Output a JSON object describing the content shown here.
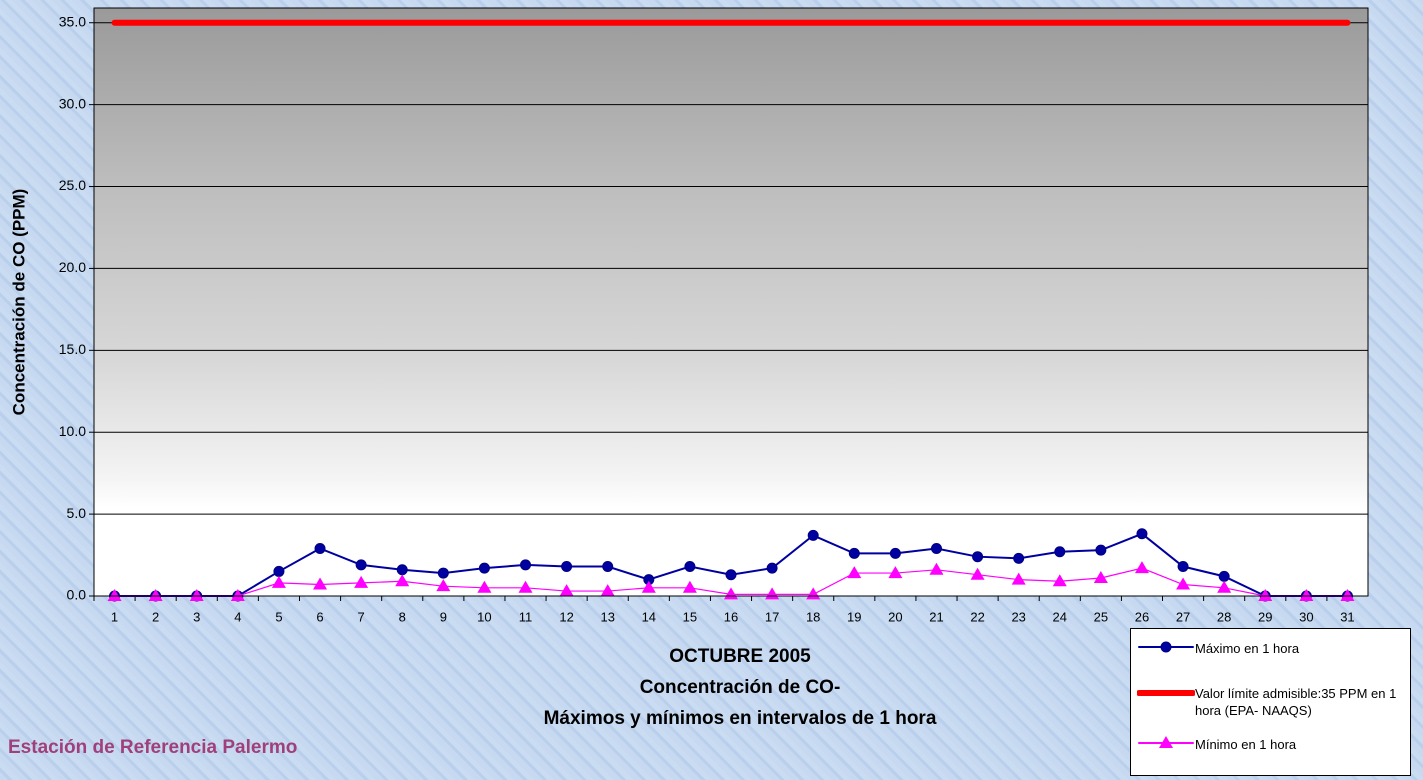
{
  "chart_data": {
    "type": "line",
    "title": "Concentración de CO-",
    "subtitle": "Máximos y mínimos en intervalos de 1 hora",
    "x_label": "OCTUBRE 2005",
    "y_label": "Concentración de CO (PPM)",
    "footer": "Estación de Referencia Palermo",
    "categories": [
      "1",
      "2",
      "3",
      "4",
      "5",
      "6",
      "7",
      "8",
      "9",
      "10",
      "11",
      "12",
      "13",
      "14",
      "15",
      "16",
      "17",
      "18",
      "19",
      "20",
      "21",
      "22",
      "23",
      "24",
      "25",
      "26",
      "27",
      "28",
      "29",
      "30",
      "31"
    ],
    "series": [
      {
        "name": "Máximo en 1 hora",
        "color": "#0000a0",
        "marker": "circle",
        "values": [
          0,
          0,
          0,
          0,
          1.5,
          2.9,
          1.9,
          1.6,
          1.4,
          1.7,
          1.9,
          1.8,
          1.8,
          1.0,
          1.8,
          1.3,
          1.7,
          3.7,
          2.6,
          2.6,
          2.9,
          2.4,
          2.3,
          2.7,
          2.8,
          3.8,
          1.8,
          1.2,
          0,
          0,
          0
        ]
      },
      {
        "name": "Valor límite admisible:35 PPM en 1 hora (EPA- NAAQS)",
        "color": "#ff0000",
        "marker": "none",
        "values": [
          35,
          35,
          35,
          35,
          35,
          35,
          35,
          35,
          35,
          35,
          35,
          35,
          35,
          35,
          35,
          35,
          35,
          35,
          35,
          35,
          35,
          35,
          35,
          35,
          35,
          35,
          35,
          35,
          35,
          35,
          35
        ]
      },
      {
        "name": "Mínimo en 1 hora",
        "color": "#ff00ff",
        "marker": "triangle",
        "values": [
          0,
          0,
          0,
          0,
          0.8,
          0.7,
          0.8,
          0.9,
          0.6,
          0.5,
          0.5,
          0.3,
          0.3,
          0.5,
          0.5,
          0.1,
          0.1,
          0.1,
          1.4,
          1.4,
          1.6,
          1.3,
          1.0,
          0.9,
          1.1,
          1.7,
          0.7,
          0.5,
          0,
          0,
          0
        ]
      }
    ],
    "ylim": [
      0,
      35.9
    ],
    "yticks": [
      {
        "value": 0,
        "label": "0.0"
      },
      {
        "value": 5,
        "label": "5.0"
      },
      {
        "value": 10,
        "label": "10.0"
      },
      {
        "value": 15,
        "label": "15.0"
      },
      {
        "value": 20,
        "label": "20.0"
      },
      {
        "value": 25,
        "label": "25.0"
      },
      {
        "value": 30,
        "label": "30.0"
      },
      {
        "value": 35,
        "label": "35.0"
      }
    ],
    "grid": true,
    "legend": "bottom-right"
  }
}
